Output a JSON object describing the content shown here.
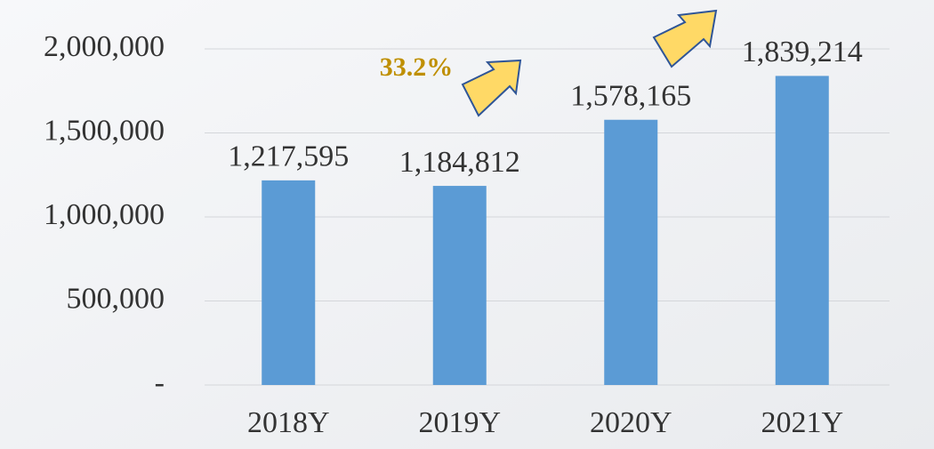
{
  "chart_data": {
    "type": "bar",
    "categories": [
      "2018Y",
      "2019Y",
      "2020Y",
      "2021Y"
    ],
    "values": [
      1217595,
      1184812,
      1578165,
      1839214
    ],
    "value_labels": [
      "1,217,595",
      "1,184,812",
      "1,578,165",
      "1,839,214"
    ],
    "color": "#5b9bd5",
    "ylim": [
      0,
      2000000
    ],
    "yticks": [
      {
        "value": 0,
        "label": "-"
      },
      {
        "value": 500000,
        "label": "500,000"
      },
      {
        "value": 1000000,
        "label": "1,000,000"
      },
      {
        "value": 1500000,
        "label": "1,500,000"
      },
      {
        "value": 2000000,
        "label": "2,000,000"
      }
    ],
    "grid": true,
    "annotations": [
      "33.2%"
    ]
  }
}
